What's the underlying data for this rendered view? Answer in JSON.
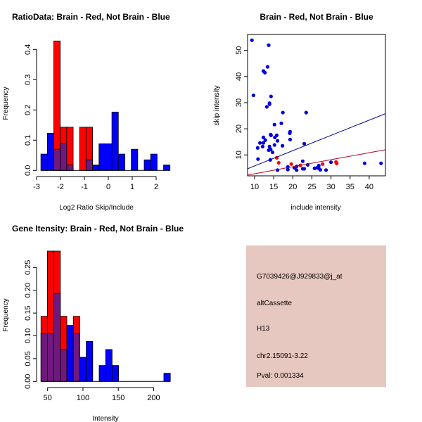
{
  "colors": {
    "brain": "#ff0000",
    "not_brain": "#0000ff",
    "overlap": "#70187e",
    "info_bg": "#e6c8c0",
    "pval": "#8b0000"
  },
  "chart_data": [
    {
      "type": "bar",
      "title": "RatioData: Brain - Red, Not Brain - Blue",
      "xlabel": "Log2 Ratio Skip/Include",
      "ylabel": "Frequency",
      "bin_start": -2.82,
      "bin_width": 0.27,
      "xticks": [
        "-3",
        "-2",
        "-1",
        "0",
        "1",
        "2"
      ],
      "xtick_values": [
        -3,
        -2,
        -1,
        0,
        1,
        2
      ],
      "yticks": [
        "0.0",
        "0.1",
        "0.2",
        "0.3",
        "0.4"
      ],
      "ytick_values": [
        0,
        0.1,
        0.2,
        0.3,
        0.4
      ],
      "xlim": [
        -3,
        2.7
      ],
      "ylim": [
        0,
        0.43
      ],
      "series": [
        {
          "name": "Not Brain",
          "color": "blue",
          "values": [
            0.054,
            0.123,
            0.07,
            0.088,
            0.018,
            0,
            0,
            0.035,
            0.018,
            0.088,
            0.088,
            0.193,
            0.054,
            0,
            0.07,
            0,
            0.035,
            0.054,
            0,
            0.018
          ]
        },
        {
          "name": "Brain",
          "color": "red",
          "values": [
            0,
            0,
            0.428,
            0.143,
            0.143,
            0,
            0.143,
            0.143,
            0,
            0,
            0,
            0,
            0,
            0,
            0,
            0,
            0,
            0,
            0,
            0
          ]
        }
      ]
    },
    {
      "type": "scatter",
      "title": "Brain - Red, Not Brain - Blue",
      "xlabel": "include intensity",
      "ylabel": "skip intensity",
      "xlim": [
        8.16,
        44.25
      ],
      "ylim": [
        2.0,
        56.1
      ],
      "xticks": [
        "10",
        "15",
        "20",
        "25",
        "30",
        "35",
        "40"
      ],
      "xtick_values": [
        10,
        15,
        20,
        25,
        30,
        35,
        40
      ],
      "yticks": [
        "10",
        "20",
        "30",
        "40",
        "50"
      ],
      "ytick_values": [
        10,
        20,
        30,
        40,
        50
      ],
      "series": [
        {
          "name": "Not Brain",
          "color": "blue",
          "points": [
            [
              9.3,
              53.9
            ],
            [
              9.7,
              32.8
            ],
            [
              13.7,
              52.0
            ],
            [
              13.4,
              43.7
            ],
            [
              12.3,
              42.1
            ],
            [
              12.7,
              41.5
            ],
            [
              14.3,
              32.4
            ],
            [
              13.9,
              29.8
            ],
            [
              13.9,
              29.4
            ],
            [
              13.2,
              28.4
            ],
            [
              17.4,
              26.2
            ],
            [
              23.5,
              26.2
            ],
            [
              15.2,
              21.6
            ],
            [
              17.0,
              22.1
            ],
            [
              19.3,
              18.9
            ],
            [
              19.2,
              18.3
            ],
            [
              14.2,
              17.8
            ],
            [
              15.8,
              17.5
            ],
            [
              14.3,
              17.5
            ],
            [
              15.3,
              16.7
            ],
            [
              12.3,
              16.7
            ],
            [
              19.3,
              15.9
            ],
            [
              16.0,
              15.4
            ],
            [
              12.8,
              15.7
            ],
            [
              11.4,
              14.6
            ],
            [
              12.3,
              14.6
            ],
            [
              23.0,
              14.3
            ],
            [
              15.2,
              13.8
            ],
            [
              13.9,
              13.2
            ],
            [
              17.3,
              13.5
            ],
            [
              12.1,
              13.2
            ],
            [
              10.8,
              12.7
            ],
            [
              14.2,
              12.1
            ],
            [
              13.7,
              11.8
            ],
            [
              14.7,
              11.0
            ],
            [
              10.9,
              8.4
            ],
            [
              14.1,
              8.1
            ],
            [
              22.6,
              7.6
            ],
            [
              30.0,
              7.2
            ],
            [
              38.8,
              6.8
            ],
            [
              43.1,
              6.8
            ],
            [
              23.9,
              6.2
            ],
            [
              26.8,
              5.9
            ],
            [
              18.7,
              5.4
            ],
            [
              21.0,
              5.6
            ],
            [
              20.4,
              5.1
            ],
            [
              25.7,
              4.9
            ],
            [
              26.4,
              5.1
            ],
            [
              26.8,
              4.9
            ],
            [
              22.6,
              4.7
            ],
            [
              23.0,
              4.7
            ],
            [
              18.7,
              4.4
            ],
            [
              27.2,
              4.3
            ],
            [
              16.0,
              4.2
            ],
            [
              21.0,
              4.2
            ],
            [
              28.7,
              4.2
            ]
          ]
        },
        {
          "name": "Brain",
          "color": "red",
          "points": [
            [
              15.8,
              8.9
            ],
            [
              16.3,
              7.0
            ],
            [
              19.6,
              6.5
            ],
            [
              22.0,
              6.0
            ],
            [
              27.8,
              6.5
            ],
            [
              31.3,
              7.3
            ],
            [
              31.5,
              6.7
            ]
          ]
        }
      ],
      "fit_lines": [
        {
          "name": "Not Brain fit",
          "color": "#00008b",
          "slope": 0.584,
          "intercept": -0.04
        },
        {
          "name": "Brain fit",
          "color": "#b00020",
          "slope": 0.268,
          "intercept": 0.13
        }
      ]
    },
    {
      "type": "bar",
      "title": "Gene Itensity: Brain - Red, Not Brain - Blue",
      "xlabel": "Intensity",
      "ylabel": "Frequency",
      "bin_start": 40.6,
      "bin_width": 9.15,
      "xticks": [
        "50",
        "100",
        "150",
        "200"
      ],
      "xtick_values": [
        50,
        100,
        150,
        200
      ],
      "yticks": [
        "0.00",
        "0.05",
        "0.10",
        "0.15",
        "0.20",
        "0.25"
      ],
      "ytick_values": [
        0,
        0.05,
        0.1,
        0.15,
        0.2,
        0.25
      ],
      "xlim": [
        34.4,
        230
      ],
      "ylim": [
        0,
        0.29
      ],
      "series": [
        {
          "name": "Not Brain",
          "color": "blue",
          "values": [
            0.105,
            0.105,
            0.193,
            0.07,
            0.123,
            0.105,
            0.053,
            0.088,
            0,
            0.035,
            0.07,
            0.035,
            0,
            0,
            0,
            0,
            0,
            0,
            0,
            0.018
          ]
        },
        {
          "name": "Brain",
          "color": "red",
          "values": [
            0.143,
            0.286,
            0.286,
            0.143,
            0,
            0.143,
            0,
            0,
            0,
            0,
            0,
            0,
            0,
            0,
            0,
            0,
            0,
            0,
            0,
            0
          ]
        }
      ]
    }
  ],
  "info": {
    "probe": "G7039426@J929833@j_at",
    "event_type": "altCassette",
    "label": "H13",
    "location": "chr2.15091-3.22",
    "pval": "Pval: 0.001334"
  }
}
